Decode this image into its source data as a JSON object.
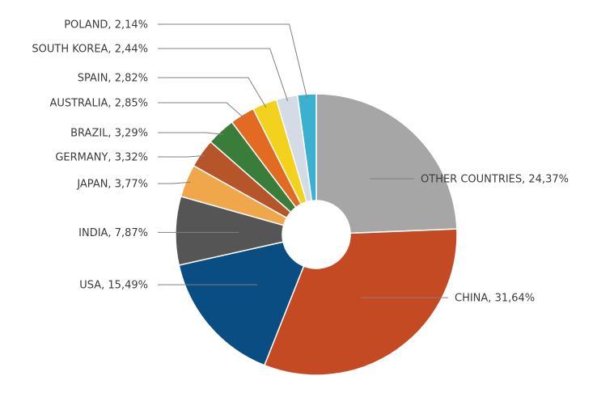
{
  "chart_data": {
    "type": "pie",
    "title": "",
    "slices": [
      {
        "name": "OTHER COUNTRIES",
        "value": 24.37,
        "label": "OTHER COUNTRIES, 24,37%",
        "color": "#a6a6a6"
      },
      {
        "name": "CHINA",
        "value": 31.64,
        "label": "CHINA, 31,64%",
        "color": "#c44a24"
      },
      {
        "name": "USA",
        "value": 15.49,
        "label": "USA, 15,49%",
        "color": "#0a4d82"
      },
      {
        "name": "INDIA",
        "value": 7.87,
        "label": "INDIA, 7,87%",
        "color": "#555555"
      },
      {
        "name": "JAPAN",
        "value": 3.77,
        "label": "JAPAN, 3,77%",
        "color": "#f0a64a"
      },
      {
        "name": "GERMANY",
        "value": 3.32,
        "label": "GERMANY, 3,32%",
        "color": "#b6542a"
      },
      {
        "name": "BRAZIL",
        "value": 3.29,
        "label": "BRAZIL, 3,29%",
        "color": "#3a7d3a"
      },
      {
        "name": "AUSTRALIA",
        "value": 2.85,
        "label": "AUSTRALIA, 2,85%",
        "color": "#e26a22"
      },
      {
        "name": "SPAIN",
        "value": 2.82,
        "label": "SPAIN, 2,82%",
        "color": "#f2d21c"
      },
      {
        "name": "SOUTH KOREA",
        "value": 2.44,
        "label": "SOUTH KOREA, 2,44%",
        "color": "#d4dbe6"
      },
      {
        "name": "POLAND",
        "value": 2.14,
        "label": "POLAND, 2,14%",
        "color": "#3bb0d0"
      }
    ]
  }
}
